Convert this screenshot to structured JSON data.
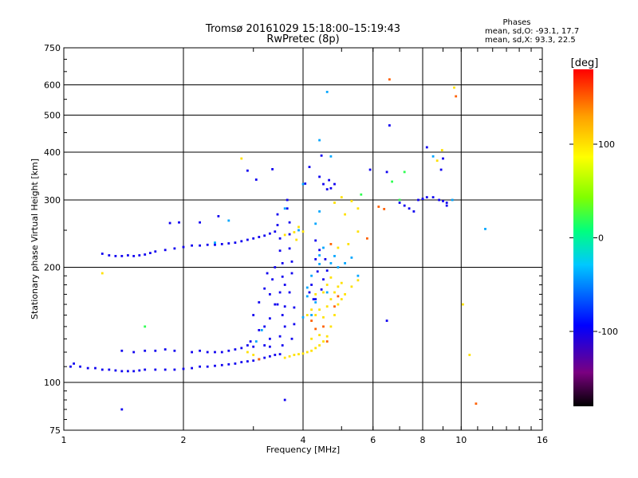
{
  "chart_data": {
    "type": "scatter",
    "title": "Tromsø 20161029  15:18:00–15:19:43",
    "subtitle": "RwPretec (8p)",
    "xlabel": "Frequency [MHz]",
    "ylabel": "Stationary phase Virtual Height [km]",
    "xscale": "log2",
    "yscale": "log",
    "xlim": [
      1,
      16
    ],
    "ylim": [
      75,
      750
    ],
    "xticks": [
      1,
      2,
      4,
      6,
      8,
      10,
      16
    ],
    "yticks": [
      75,
      100,
      200,
      300,
      400,
      500,
      600,
      750
    ],
    "grid": true,
    "phase_info": {
      "title": "Phases",
      "line_o": "mean, sd,O: -93.1, 17.7",
      "line_x": "mean, sd,X:  93.3, 22.5"
    },
    "colorbar": {
      "label": "[deg]",
      "range": [
        -180,
        180
      ],
      "ticks": [
        100,
        0,
        -100
      ],
      "palette": [
        "#000000",
        "#7a0080",
        "#0000ff",
        "#00c8ff",
        "#00ff7f",
        "#80ff00",
        "#ffff00",
        "#ffa000",
        "#ff0000"
      ]
    },
    "series": [
      {
        "phase": -100,
        "points": [
          [
            1.04,
            110
          ],
          [
            1.06,
            112
          ],
          [
            1.1,
            110
          ],
          [
            1.15,
            109
          ],
          [
            1.2,
            109
          ],
          [
            1.25,
            108
          ],
          [
            1.3,
            108
          ],
          [
            1.35,
            107.5
          ],
          [
            1.4,
            107
          ],
          [
            1.45,
            107
          ],
          [
            1.5,
            107
          ],
          [
            1.55,
            107.5
          ],
          [
            1.6,
            108
          ],
          [
            1.7,
            108
          ],
          [
            1.8,
            108
          ],
          [
            1.9,
            108
          ],
          [
            2.0,
            108.5
          ],
          [
            2.1,
            109
          ],
          [
            2.2,
            110
          ],
          [
            2.3,
            110
          ],
          [
            2.4,
            110.5
          ],
          [
            2.5,
            111
          ],
          [
            2.6,
            111.5
          ],
          [
            2.7,
            112
          ],
          [
            2.8,
            113
          ],
          [
            2.9,
            113.5
          ],
          [
            3.0,
            114
          ],
          [
            3.1,
            115
          ],
          [
            3.2,
            116
          ],
          [
            3.3,
            117
          ],
          [
            3.4,
            118
          ],
          [
            3.5,
            118.5
          ],
          [
            1.25,
            217
          ],
          [
            1.3,
            215
          ],
          [
            1.35,
            214
          ],
          [
            1.4,
            214
          ],
          [
            1.45,
            215
          ],
          [
            1.5,
            214
          ],
          [
            1.55,
            215
          ],
          [
            1.6,
            216
          ],
          [
            1.65,
            218
          ],
          [
            1.7,
            220
          ],
          [
            1.8,
            222
          ],
          [
            1.9,
            224
          ],
          [
            2.0,
            226
          ],
          [
            2.1,
            228
          ],
          [
            2.2,
            228
          ],
          [
            2.3,
            229
          ],
          [
            2.4,
            229
          ],
          [
            2.5,
            230
          ],
          [
            2.6,
            231
          ],
          [
            2.7,
            232
          ],
          [
            2.8,
            234
          ],
          [
            2.9,
            236
          ],
          [
            3.0,
            238
          ],
          [
            3.1,
            240
          ],
          [
            3.2,
            242
          ],
          [
            3.3,
            245
          ],
          [
            3.4,
            248
          ],
          [
            1.4,
            121
          ],
          [
            1.5,
            120
          ],
          [
            1.6,
            121
          ],
          [
            1.7,
            121
          ],
          [
            1.8,
            122
          ],
          [
            1.9,
            121
          ],
          [
            2.1,
            120
          ],
          [
            2.2,
            121
          ],
          [
            2.3,
            120
          ],
          [
            2.4,
            120
          ],
          [
            2.5,
            120
          ],
          [
            2.6,
            121
          ],
          [
            2.7,
            122
          ],
          [
            2.8,
            123
          ],
          [
            3.0,
            124
          ],
          [
            3.2,
            125
          ],
          [
            3.3,
            124
          ],
          [
            1.85,
            261
          ],
          [
            1.95,
            262
          ],
          [
            2.2,
            262
          ],
          [
            2.45,
            272
          ],
          [
            2.9,
            358
          ],
          [
            3.05,
            339
          ],
          [
            3.35,
            361
          ],
          [
            3.45,
            275
          ],
          [
            3.45,
            258
          ],
          [
            3.5,
            238
          ],
          [
            3.5,
            221
          ],
          [
            3.55,
            205
          ],
          [
            3.55,
            189
          ],
          [
            3.5,
            172
          ],
          [
            3.45,
            160
          ],
          [
            3.55,
            150
          ],
          [
            3.6,
            140
          ],
          [
            3.5,
            132
          ],
          [
            3.55,
            125
          ],
          [
            3.6,
            180
          ],
          [
            3.6,
            158
          ],
          [
            3.4,
            200
          ],
          [
            3.35,
            186
          ],
          [
            3.3,
            170
          ],
          [
            3.4,
            160
          ],
          [
            3.3,
            147
          ],
          [
            3.2,
            140
          ],
          [
            3.3,
            130
          ],
          [
            3.1,
            162
          ],
          [
            3.2,
            176
          ],
          [
            3.25,
            193
          ],
          [
            3.0,
            150
          ],
          [
            3.1,
            137
          ],
          [
            2.95,
            128
          ],
          [
            2.9,
            125
          ],
          [
            3.65,
            300
          ],
          [
            3.65,
            285
          ],
          [
            3.7,
            262
          ],
          [
            3.7,
            244
          ],
          [
            3.7,
            224
          ],
          [
            3.75,
            207
          ],
          [
            3.75,
            193
          ],
          [
            3.7,
            172
          ],
          [
            3.8,
            157
          ],
          [
            3.8,
            142
          ],
          [
            3.75,
            130
          ],
          [
            4.3,
            210
          ],
          [
            4.35,
            195
          ],
          [
            4.2,
            180
          ],
          [
            4.15,
            172
          ],
          [
            4.3,
            165
          ],
          [
            4.45,
            175
          ],
          [
            4.5,
            186
          ],
          [
            4.6,
            196
          ],
          [
            4.55,
            210
          ],
          [
            4.4,
            222
          ],
          [
            4.3,
            235
          ],
          [
            4.25,
            165
          ],
          [
            4.5,
            330
          ],
          [
            4.6,
            320
          ],
          [
            4.7,
            322
          ],
          [
            4.8,
            330
          ],
          [
            4.65,
            338
          ],
          [
            4.4,
            345
          ],
          [
            4.45,
            392
          ],
          [
            4.15,
            366
          ],
          [
            4.05,
            331
          ],
          [
            5.9,
            360
          ],
          [
            6.6,
            470
          ],
          [
            6.5,
            355
          ],
          [
            6.5,
            145
          ],
          [
            7.0,
            295
          ],
          [
            7.2,
            290
          ],
          [
            7.4,
            285
          ],
          [
            7.6,
            280
          ],
          [
            7.8,
            300
          ],
          [
            8.0,
            302
          ],
          [
            8.2,
            305
          ],
          [
            8.5,
            305
          ],
          [
            8.8,
            300
          ],
          [
            9.0,
            298
          ],
          [
            9.2,
            295
          ],
          [
            8.9,
            360
          ],
          [
            9.0,
            385
          ],
          [
            9.2,
            290
          ],
          [
            8.2,
            412
          ],
          [
            3.6,
            90
          ],
          [
            1.4,
            85
          ]
        ]
      },
      {
        "phase": -40,
        "points": [
          [
            4.3,
            162
          ],
          [
            4.1,
            168
          ],
          [
            4.1,
            177
          ],
          [
            4.2,
            190
          ],
          [
            4.4,
            204
          ],
          [
            4.4,
            215
          ],
          [
            4.5,
            225
          ],
          [
            4.8,
            214
          ],
          [
            4.7,
            205
          ],
          [
            4.9,
            200
          ],
          [
            5.1,
            205
          ],
          [
            5.3,
            212
          ],
          [
            5.5,
            190
          ],
          [
            4.6,
            172
          ],
          [
            4.2,
            150
          ],
          [
            4.0,
            148
          ],
          [
            4.0,
            330
          ],
          [
            4.4,
            430
          ],
          [
            4.6,
            575
          ],
          [
            4.7,
            390
          ],
          [
            3.6,
            285
          ],
          [
            3.9,
            250
          ],
          [
            4.4,
            280
          ],
          [
            4.3,
            260
          ],
          [
            3.05,
            128
          ],
          [
            3.15,
            137
          ],
          [
            8.5,
            390
          ],
          [
            9.5,
            300
          ],
          [
            11.5,
            252
          ],
          [
            2.6,
            265
          ],
          [
            2.4,
            232
          ]
        ]
      },
      {
        "phase": 20,
        "points": [
          [
            1.6,
            140
          ],
          [
            5.6,
            310
          ],
          [
            6.7,
            335
          ],
          [
            7.2,
            355
          ],
          [
            7.0,
            300
          ]
        ]
      },
      {
        "phase": 100,
        "points": [
          [
            3.6,
            116
          ],
          [
            3.7,
            117
          ],
          [
            3.8,
            118
          ],
          [
            3.9,
            118.5
          ],
          [
            4.0,
            119
          ],
          [
            4.1,
            120
          ],
          [
            4.2,
            121
          ],
          [
            4.3,
            123
          ],
          [
            4.4,
            125
          ],
          [
            4.5,
            128
          ],
          [
            4.6,
            132
          ],
          [
            4.7,
            140
          ],
          [
            4.8,
            150
          ],
          [
            4.9,
            160
          ],
          [
            5.0,
            165
          ],
          [
            5.1,
            170
          ],
          [
            5.3,
            178
          ],
          [
            5.5,
            185
          ],
          [
            4.1,
            150
          ],
          [
            4.2,
            155
          ],
          [
            4.3,
            150
          ],
          [
            4.4,
            155
          ],
          [
            4.5,
            148
          ],
          [
            4.6,
            158
          ],
          [
            4.7,
            165
          ],
          [
            4.8,
            172
          ],
          [
            4.9,
            178
          ],
          [
            5.0,
            182
          ],
          [
            4.3,
            170
          ],
          [
            4.5,
            172
          ],
          [
            4.6,
            180
          ],
          [
            4.7,
            188
          ],
          [
            4.2,
            130
          ],
          [
            4.4,
            133
          ],
          [
            3.6,
            243
          ],
          [
            3.8,
            247
          ],
          [
            3.9,
            255
          ],
          [
            4.0,
            248
          ],
          [
            3.85,
            236
          ],
          [
            4.8,
            295
          ],
          [
            5.0,
            305
          ],
          [
            5.3,
            298
          ],
          [
            5.5,
            285
          ],
          [
            5.1,
            275
          ],
          [
            5.5,
            248
          ],
          [
            5.2,
            230
          ],
          [
            4.9,
            225
          ],
          [
            8.95,
            405
          ],
          [
            8.7,
            380
          ],
          [
            9.6,
            590
          ],
          [
            10.5,
            118
          ],
          [
            10.1,
            160
          ],
          [
            2.8,
            385
          ],
          [
            3.0,
            118
          ],
          [
            2.9,
            120
          ],
          [
            1.25,
            193
          ]
        ]
      },
      {
        "phase": 150,
        "points": [
          [
            4.2,
            145
          ],
          [
            4.5,
            140
          ],
          [
            4.6,
            128
          ],
          [
            4.8,
            158
          ],
          [
            4.3,
            138
          ],
          [
            4.9,
            168
          ],
          [
            6.2,
            288
          ],
          [
            5.8,
            238
          ],
          [
            6.6,
            620
          ],
          [
            9.7,
            560
          ],
          [
            10.9,
            88
          ],
          [
            6.4,
            284
          ],
          [
            3.1,
            115
          ],
          [
            4.7,
            230
          ]
        ]
      }
    ]
  }
}
